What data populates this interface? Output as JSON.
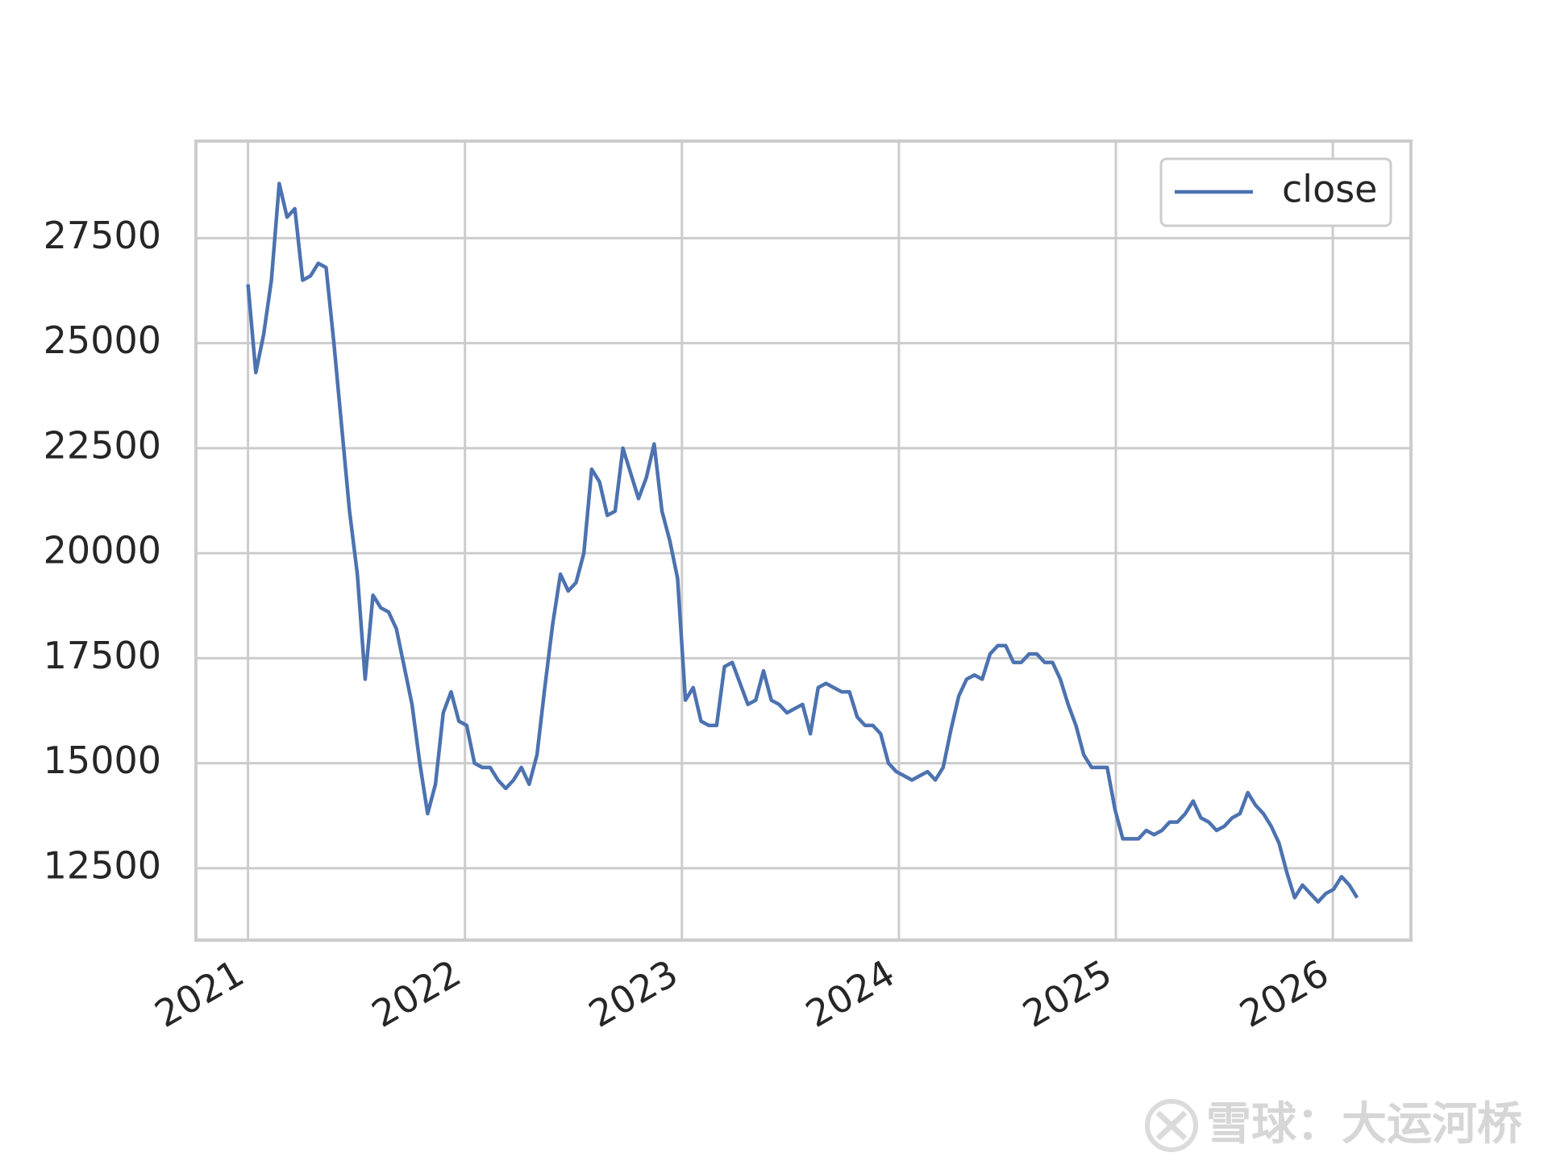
{
  "chart_data": {
    "type": "line",
    "x": [
      2021,
      2021.036,
      2021.072,
      2021.108,
      2021.144,
      2021.18,
      2021.216,
      2021.252,
      2021.288,
      2021.324,
      2021.36,
      2021.396,
      2021.432,
      2021.468,
      2021.504,
      2021.54,
      2021.576,
      2021.612,
      2021.648,
      2021.684,
      2021.72,
      2021.756,
      2021.792,
      2021.828,
      2021.864,
      2021.9,
      2021.936,
      2021.972,
      2022.008,
      2022.044,
      2022.08,
      2022.116,
      2022.152,
      2022.188,
      2022.224,
      2022.26,
      2022.296,
      2022.332,
      2022.368,
      2022.404,
      2022.44,
      2022.476,
      2022.512,
      2022.548,
      2022.584,
      2022.62,
      2022.656,
      2022.692,
      2022.728,
      2022.764,
      2022.8,
      2022.836,
      2022.872,
      2022.908,
      2022.944,
      2022.98,
      2023.016,
      2023.052,
      2023.088,
      2023.124,
      2023.16,
      2023.196,
      2023.232,
      2023.268,
      2023.304,
      2023.34,
      2023.376,
      2023.412,
      2023.448,
      2023.484,
      2023.52,
      2023.556,
      2023.592,
      2023.628,
      2023.664,
      2023.7,
      2023.736,
      2023.772,
      2023.808,
      2023.844,
      2023.88,
      2023.916,
      2023.952,
      2023.988,
      2024.024,
      2024.06,
      2024.096,
      2024.132,
      2024.168,
      2024.204,
      2024.24,
      2024.276,
      2024.312,
      2024.348,
      2024.384,
      2024.42,
      2024.456,
      2024.492,
      2024.528,
      2024.564,
      2024.6,
      2024.636,
      2024.672,
      2024.708,
      2024.744,
      2024.78,
      2024.816,
      2024.852,
      2024.888,
      2024.924,
      2024.96,
      2024.996,
      2025.032,
      2025.068,
      2025.104,
      2025.14,
      2025.176,
      2025.212,
      2025.248,
      2025.284,
      2025.32,
      2025.356,
      2025.392,
      2025.428,
      2025.464,
      2025.5,
      2025.536,
      2025.572,
      2025.608,
      2025.644,
      2025.68,
      2025.716,
      2025.752,
      2025.788,
      2025.824,
      2025.86,
      2025.896,
      2025.932,
      2025.968,
      2026.004,
      2026.04,
      2026.076,
      2026.112
    ],
    "series": [
      {
        "name": "close",
        "color": "#4c72b0",
        "values": [
          26400,
          24300,
          25200,
          26500,
          28800,
          28000,
          28200,
          26500,
          26600,
          26900,
          26800,
          25000,
          23000,
          21000,
          19500,
          17000,
          19000,
          18700,
          18600,
          18200,
          17300,
          16400,
          15000,
          13800,
          14500,
          16200,
          16700,
          16000,
          15900,
          15000,
          14900,
          14900,
          14600,
          14400,
          14600,
          14900,
          14500,
          15200,
          16800,
          18300,
          19500,
          19100,
          19300,
          20000,
          22000,
          21700,
          20900,
          21000,
          22500,
          21900,
          21300,
          21800,
          22600,
          21000,
          20300,
          19400,
          16500,
          16800,
          16000,
          15900,
          15900,
          17300,
          17400,
          16900,
          16400,
          16500,
          17200,
          16500,
          16400,
          16200,
          16300,
          16400,
          15700,
          16800,
          16900,
          16800,
          16700,
          16700,
          16100,
          15900,
          15900,
          15700,
          15000,
          14800,
          14700,
          14600,
          14700,
          14800,
          14600,
          14900,
          15800,
          16600,
          17000,
          17100,
          17000,
          17600,
          17800,
          17800,
          17400,
          17400,
          17600,
          17600,
          17400,
          17400,
          17000,
          16400,
          15900,
          15200,
          14900,
          14900,
          14900,
          13900,
          13200,
          13200,
          13200,
          13400,
          13300,
          13400,
          13600,
          13600,
          13800,
          14100,
          13700,
          13600,
          13400,
          13500,
          13700,
          13800,
          14300,
          14000,
          13800,
          13500,
          13100,
          12400,
          11800,
          12100,
          11900,
          11700,
          11900,
          12000,
          12300,
          12100,
          11800
        ]
      }
    ],
    "xlim": [
      2020.76,
      2026.36
    ],
    "xticks": [
      2021,
      2022,
      2023,
      2024,
      2025,
      2026
    ],
    "ylim": [
      10790,
      29810
    ],
    "yticks": [
      12500,
      15000,
      17500,
      20000,
      22500,
      25000,
      27500
    ],
    "grid": true,
    "legend": "upper right"
  },
  "watermark": "雪球：大运河桥"
}
